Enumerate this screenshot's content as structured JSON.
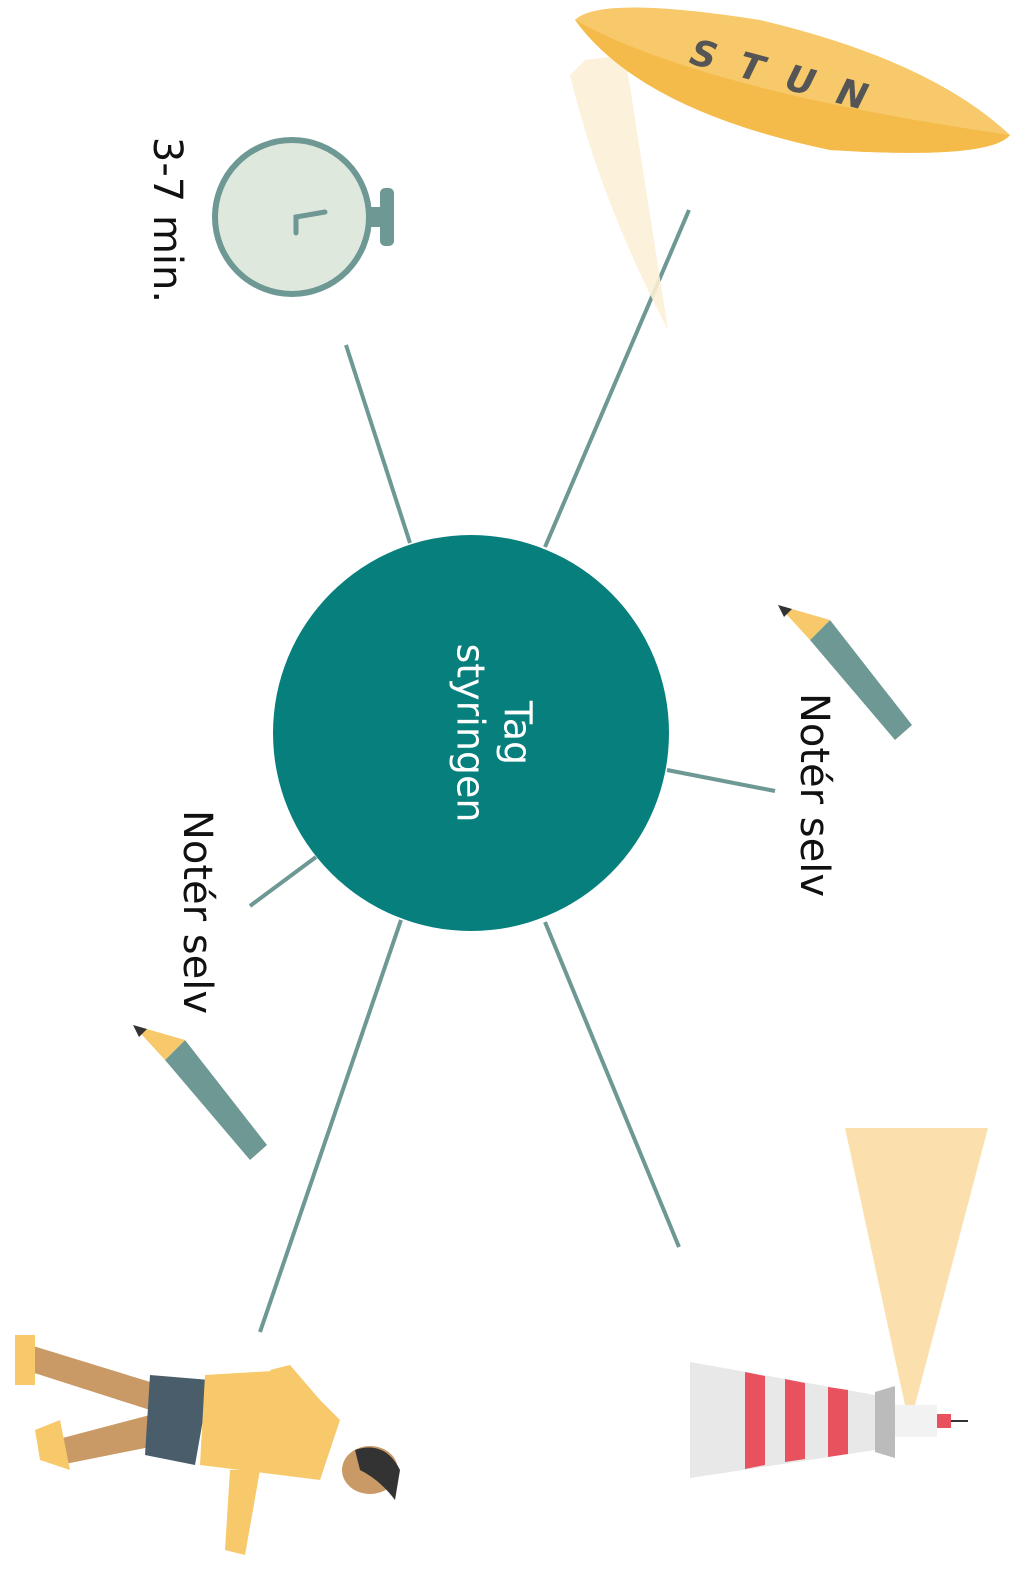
{
  "center": {
    "lines": [
      "Tag",
      "styringen"
    ]
  },
  "time": "3-7 min.",
  "notes": [
    "Notér selv",
    "Notér selv"
  ],
  "board": "STUN"
}
